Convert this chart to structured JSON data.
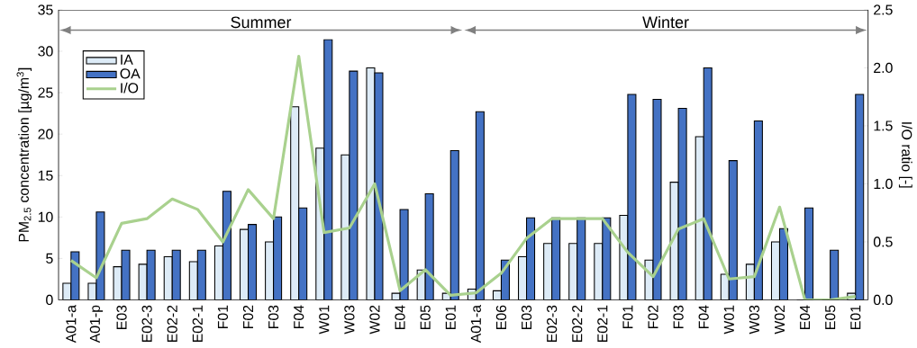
{
  "chart_data": {
    "type": "bar",
    "ylabel": "PM$_{2.5}$ concentration [µg/m$^{3}$]",
    "y2label": "I/O ratio [-]",
    "categories": [
      "A01-a",
      "A01-p",
      "E03",
      "E02-3",
      "E02-2",
      "E02-1",
      "F01",
      "F02",
      "F03",
      "F04",
      "W01",
      "W03",
      "W02",
      "E04",
      "E05",
      "E01",
      "A01-a",
      "E06",
      "E03",
      "E02-3",
      "E02-2",
      "E02-1",
      "F01",
      "F02",
      "F03",
      "F04",
      "W01",
      "W03",
      "W02",
      "E04",
      "E05",
      "E01"
    ],
    "series": [
      {
        "name": "IA",
        "color": "#ddebf7",
        "values": [
          2,
          2,
          4,
          4.3,
          5.2,
          4.6,
          6.5,
          8.5,
          7,
          23.3,
          18.3,
          17.5,
          28,
          0.8,
          3.6,
          0.8,
          1.3,
          1.1,
          5.2,
          6.8,
          6.8,
          6.8,
          10.2,
          4.8,
          14.2,
          19.7,
          3.1,
          4.3,
          7,
          0,
          0,
          0.8
        ]
      },
      {
        "name": "OA",
        "color": "#4472c4",
        "values": [
          5.8,
          10.6,
          6,
          6,
          6,
          6,
          13.1,
          9.1,
          10,
          11.1,
          31.4,
          27.6,
          27.4,
          10.9,
          12.8,
          18,
          22.7,
          4.8,
          9.9,
          9.9,
          9.9,
          9.9,
          24.8,
          24.2,
          23.1,
          28,
          16.8,
          21.6,
          8.6,
          11.1,
          6,
          24.8
        ]
      },
      {
        "name": "I/O",
        "type": "line",
        "axis": "y2",
        "color": "#a9d18e",
        "values": [
          0.34,
          0.19,
          0.66,
          0.7,
          0.87,
          0.78,
          0.5,
          0.95,
          0.7,
          2.1,
          0.58,
          0.62,
          1.0,
          0.08,
          0.26,
          0.04,
          0.06,
          0.23,
          0.53,
          0.7,
          0.7,
          0.7,
          0.41,
          0.2,
          0.61,
          0.7,
          0.18,
          0.2,
          0.8,
          0,
          0,
          0.03
        ]
      }
    ],
    "ylim": [
      0,
      35
    ],
    "yticks": [
      0,
      5,
      10,
      15,
      20,
      25,
      30,
      35
    ],
    "y2lim": [
      0,
      2.5
    ],
    "y2ticks": [
      {
        "value": 0,
        "label": "0.0"
      },
      {
        "value": 0.5,
        "label": "0.5"
      },
      {
        "value": 1,
        "label": "1.0"
      },
      {
        "value": 1.5,
        "label": "1.5"
      },
      {
        "value": 2,
        "label": "2.0"
      },
      {
        "value": 2.5,
        "label": "2.5"
      }
    ],
    "annotations": [
      "Summer",
      "Winter"
    ],
    "legend": "top left",
    "grid": false,
    "marker": "none",
    "line_style": "solid"
  }
}
